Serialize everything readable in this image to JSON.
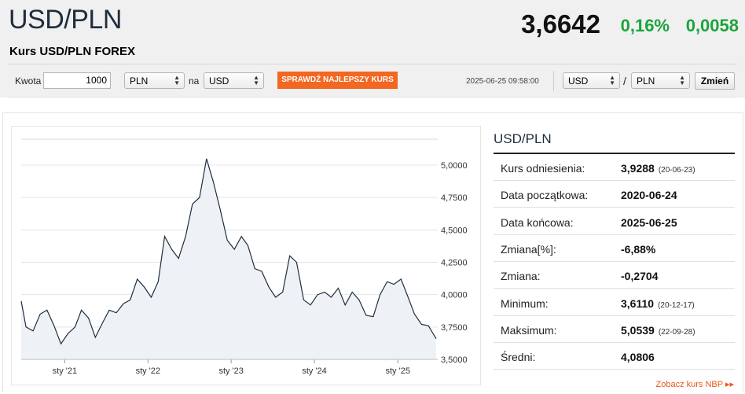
{
  "header": {
    "pair": "USD/PLN",
    "subtitle": "Kurs USD/PLN FOREX",
    "price": "3,6642",
    "change_pct": "0,16%",
    "change_abs": "0,0058",
    "change_color": "#1ca43c"
  },
  "converter": {
    "amount_label": "Kwota",
    "amount_value": "1000",
    "from_currency": "PLN",
    "to_label": "na",
    "to_currency": "USD",
    "best_rate_button": "SPRAWDŹ NAJLEPSZY KURS",
    "best_rate_color": "#f26722",
    "timestamp": "2025-06-25 09:58:00",
    "base_currency": "USD",
    "separator": "/",
    "quote_currency": "PLN",
    "change_button": "Zmień"
  },
  "info": {
    "title": "USD/PLN",
    "rows": [
      {
        "label": "Kurs odniesienia:",
        "value": "3,9288",
        "date": "(20-06-23)"
      },
      {
        "label": "Data początkowa:",
        "value": "2020-06-24",
        "date": ""
      },
      {
        "label": "Data końcowa:",
        "value": "2025-06-25",
        "date": ""
      },
      {
        "label": "Zmiana[%]:",
        "value": "-6,88%",
        "date": ""
      },
      {
        "label": "Zmiana:",
        "value": "-0,2704",
        "date": ""
      },
      {
        "label": "Minimum:",
        "value": "3,6110",
        "date": "(20-12-17)"
      },
      {
        "label": "Maksimum:",
        "value": "5,0539",
        "date": "(22-09-28)"
      },
      {
        "label": "Średni:",
        "value": "4,0806",
        "date": ""
      }
    ],
    "nbp_link": "Zobacz kurs NBP ▸▸"
  },
  "chart_data": {
    "type": "area",
    "title": "",
    "xlabel": "",
    "ylabel": "",
    "x_tick_labels": [
      "sty '21",
      "sty '22",
      "sty '23",
      "sty '24",
      "sty '25"
    ],
    "y_tick_labels": [
      "5,0000",
      "4,7500",
      "4,5000",
      "4,2500",
      "4,0000",
      "3,7500",
      "3,5000"
    ],
    "y_ticks": [
      5.0,
      4.75,
      4.5,
      4.25,
      4.0,
      3.75,
      3.5
    ],
    "ylim": [
      3.5,
      5.0
    ],
    "xlim": [
      "2020-06-24",
      "2025-06-25"
    ],
    "grid": true,
    "line_color": "#1f2d3d",
    "fill_color": "#eef2f6",
    "series": [
      {
        "x": [
          "2020-06",
          "2020-07",
          "2020-08",
          "2020-09",
          "2020-10",
          "2020-11",
          "2020-12",
          "2021-01",
          "2021-02",
          "2021-03",
          "2021-04",
          "2021-05",
          "2021-06",
          "2021-07",
          "2021-08",
          "2021-09",
          "2021-10",
          "2021-11",
          "2021-12",
          "2022-01",
          "2022-02",
          "2022-03",
          "2022-04",
          "2022-05",
          "2022-06",
          "2022-07",
          "2022-08",
          "2022-09",
          "2022-10",
          "2022-11",
          "2022-12",
          "2023-01",
          "2023-02",
          "2023-03",
          "2023-04",
          "2023-05",
          "2023-06",
          "2023-07",
          "2023-08",
          "2023-09",
          "2023-10",
          "2023-11",
          "2023-12",
          "2024-01",
          "2024-02",
          "2024-03",
          "2024-04",
          "2024-05",
          "2024-06",
          "2024-07",
          "2024-08",
          "2024-09",
          "2024-10",
          "2024-11",
          "2024-12",
          "2025-01",
          "2025-02",
          "2025-03",
          "2025-04",
          "2025-05",
          "2025-06"
        ],
        "values": [
          3.95,
          3.75,
          3.72,
          3.85,
          3.88,
          3.76,
          3.62,
          3.7,
          3.75,
          3.88,
          3.82,
          3.67,
          3.78,
          3.88,
          3.86,
          3.93,
          3.96,
          4.12,
          4.06,
          3.98,
          4.1,
          4.45,
          4.35,
          4.28,
          4.45,
          4.7,
          4.75,
          5.05,
          4.87,
          4.65,
          4.42,
          4.35,
          4.45,
          4.38,
          4.2,
          4.18,
          4.06,
          3.98,
          4.02,
          4.3,
          4.25,
          3.96,
          3.92,
          4.0,
          4.02,
          3.98,
          4.05,
          3.92,
          4.02,
          3.96,
          3.84,
          3.83,
          4.0,
          4.1,
          4.08,
          4.12,
          3.98,
          3.85,
          3.77,
          3.76,
          3.66
        ]
      }
    ]
  }
}
